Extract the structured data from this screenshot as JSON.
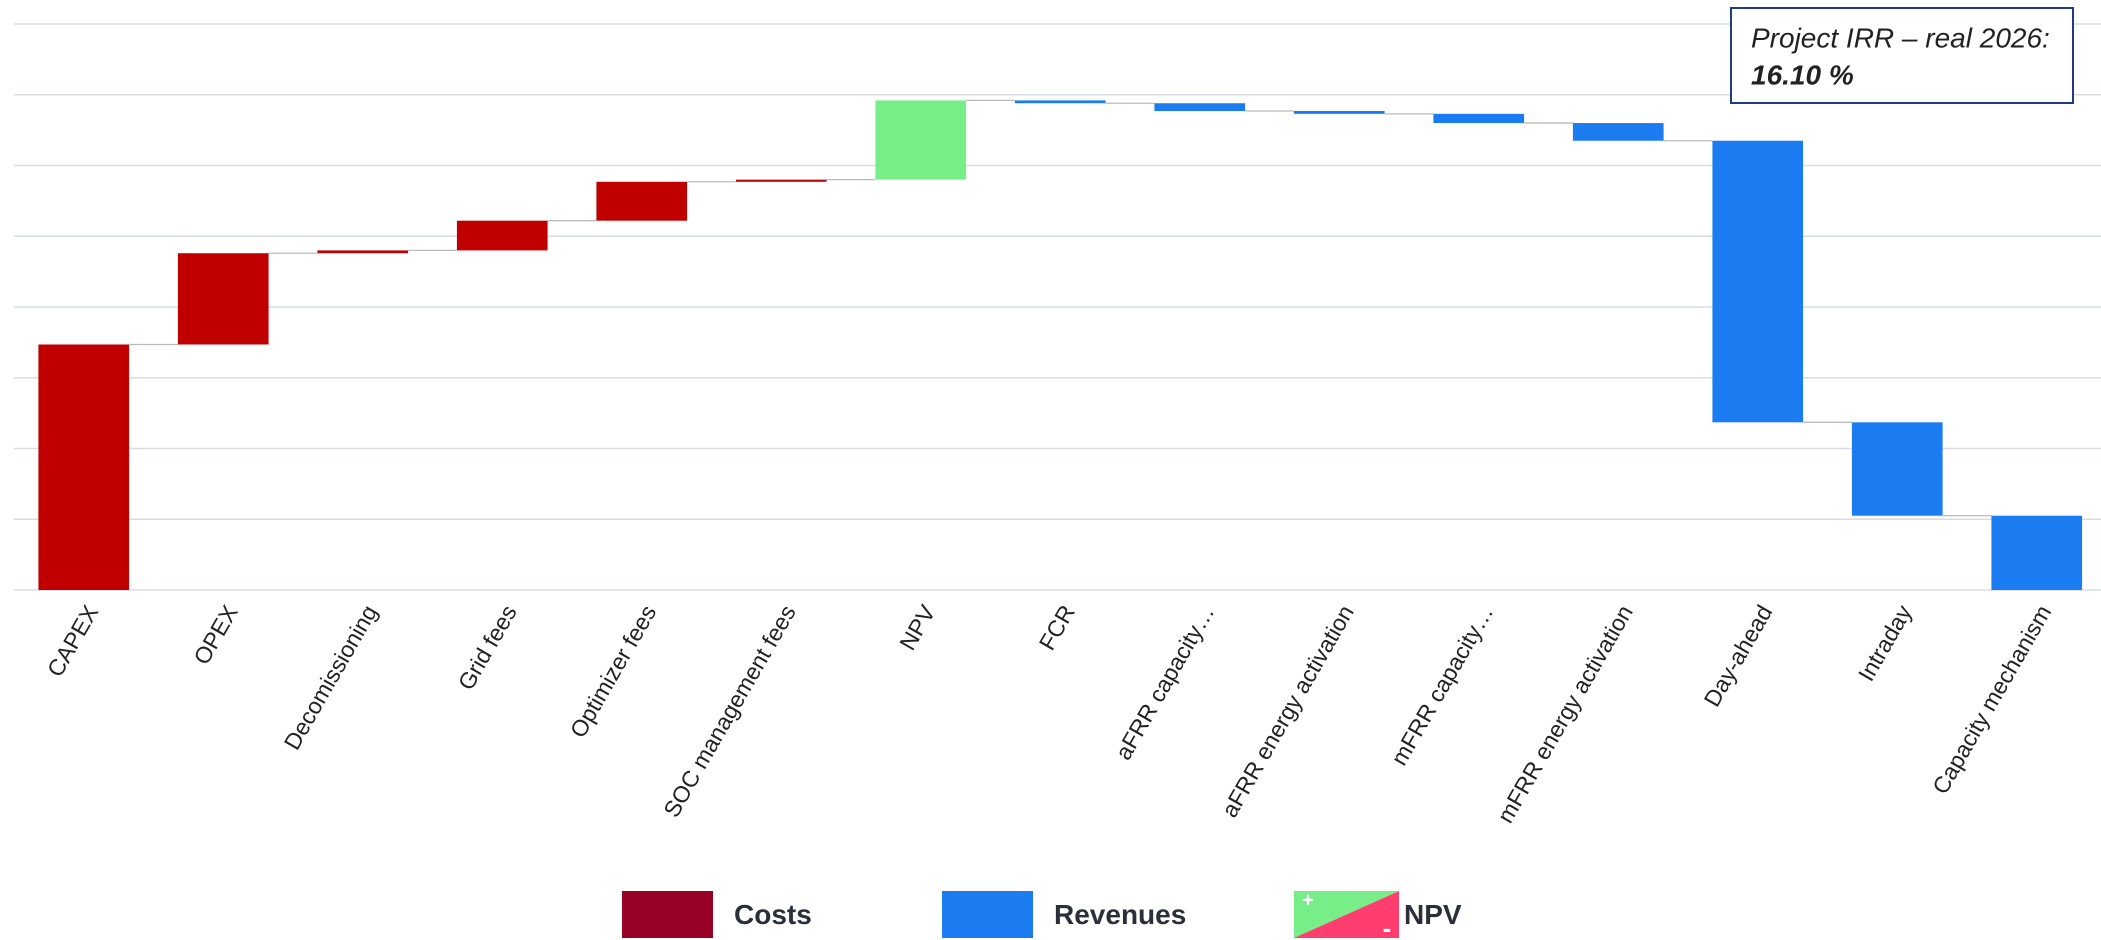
{
  "chart_data": {
    "type": "waterfall",
    "categories": [
      "CAPEX",
      "OPEX",
      "Decomissioning",
      "Grid fees",
      "Optimizer fees",
      "SOC management fees",
      "NPV",
      "FCR",
      "aFRR capacity…",
      "aFRR energy activation",
      "mFRR capacity…",
      "mFRR energy activation",
      "Day-ahead",
      "Intraday",
      "Capacity mechanism"
    ],
    "values": [
      3.47,
      1.29,
      0.04,
      0.42,
      0.55,
      0.03,
      1.12,
      -0.04,
      -0.11,
      -0.04,
      -0.13,
      -0.25,
      -3.98,
      -1.32,
      -1.05
    ],
    "kinds": [
      "Costs",
      "Costs",
      "Costs",
      "Costs",
      "Costs",
      "Costs",
      "NPV",
      "Revenues",
      "Revenues",
      "Revenues",
      "Revenues",
      "Revenues",
      "Revenues",
      "Revenues",
      "Revenues"
    ],
    "colors": {
      "Costs": "#c00000",
      "Revenues": "#1a7cf0",
      "NPV": "#77ee88"
    },
    "ylim": [
      0,
      8
    ],
    "yticks": [
      0,
      1,
      2,
      3,
      4,
      5,
      6,
      7,
      8
    ],
    "grid": true,
    "legend": {
      "items": [
        {
          "name": "Costs",
          "color": "#990026"
        },
        {
          "name": "Revenues",
          "color": "#1a7cf0"
        },
        {
          "name": "NPV",
          "colors": [
            "#77ee88",
            "#ff3d6e"
          ],
          "signs": [
            "+",
            "-"
          ]
        }
      ],
      "position": "bottom"
    },
    "annotation": {
      "label": "Project IRR – real 2026:",
      "value": "16.10 %",
      "color": "#77ee88"
    }
  }
}
